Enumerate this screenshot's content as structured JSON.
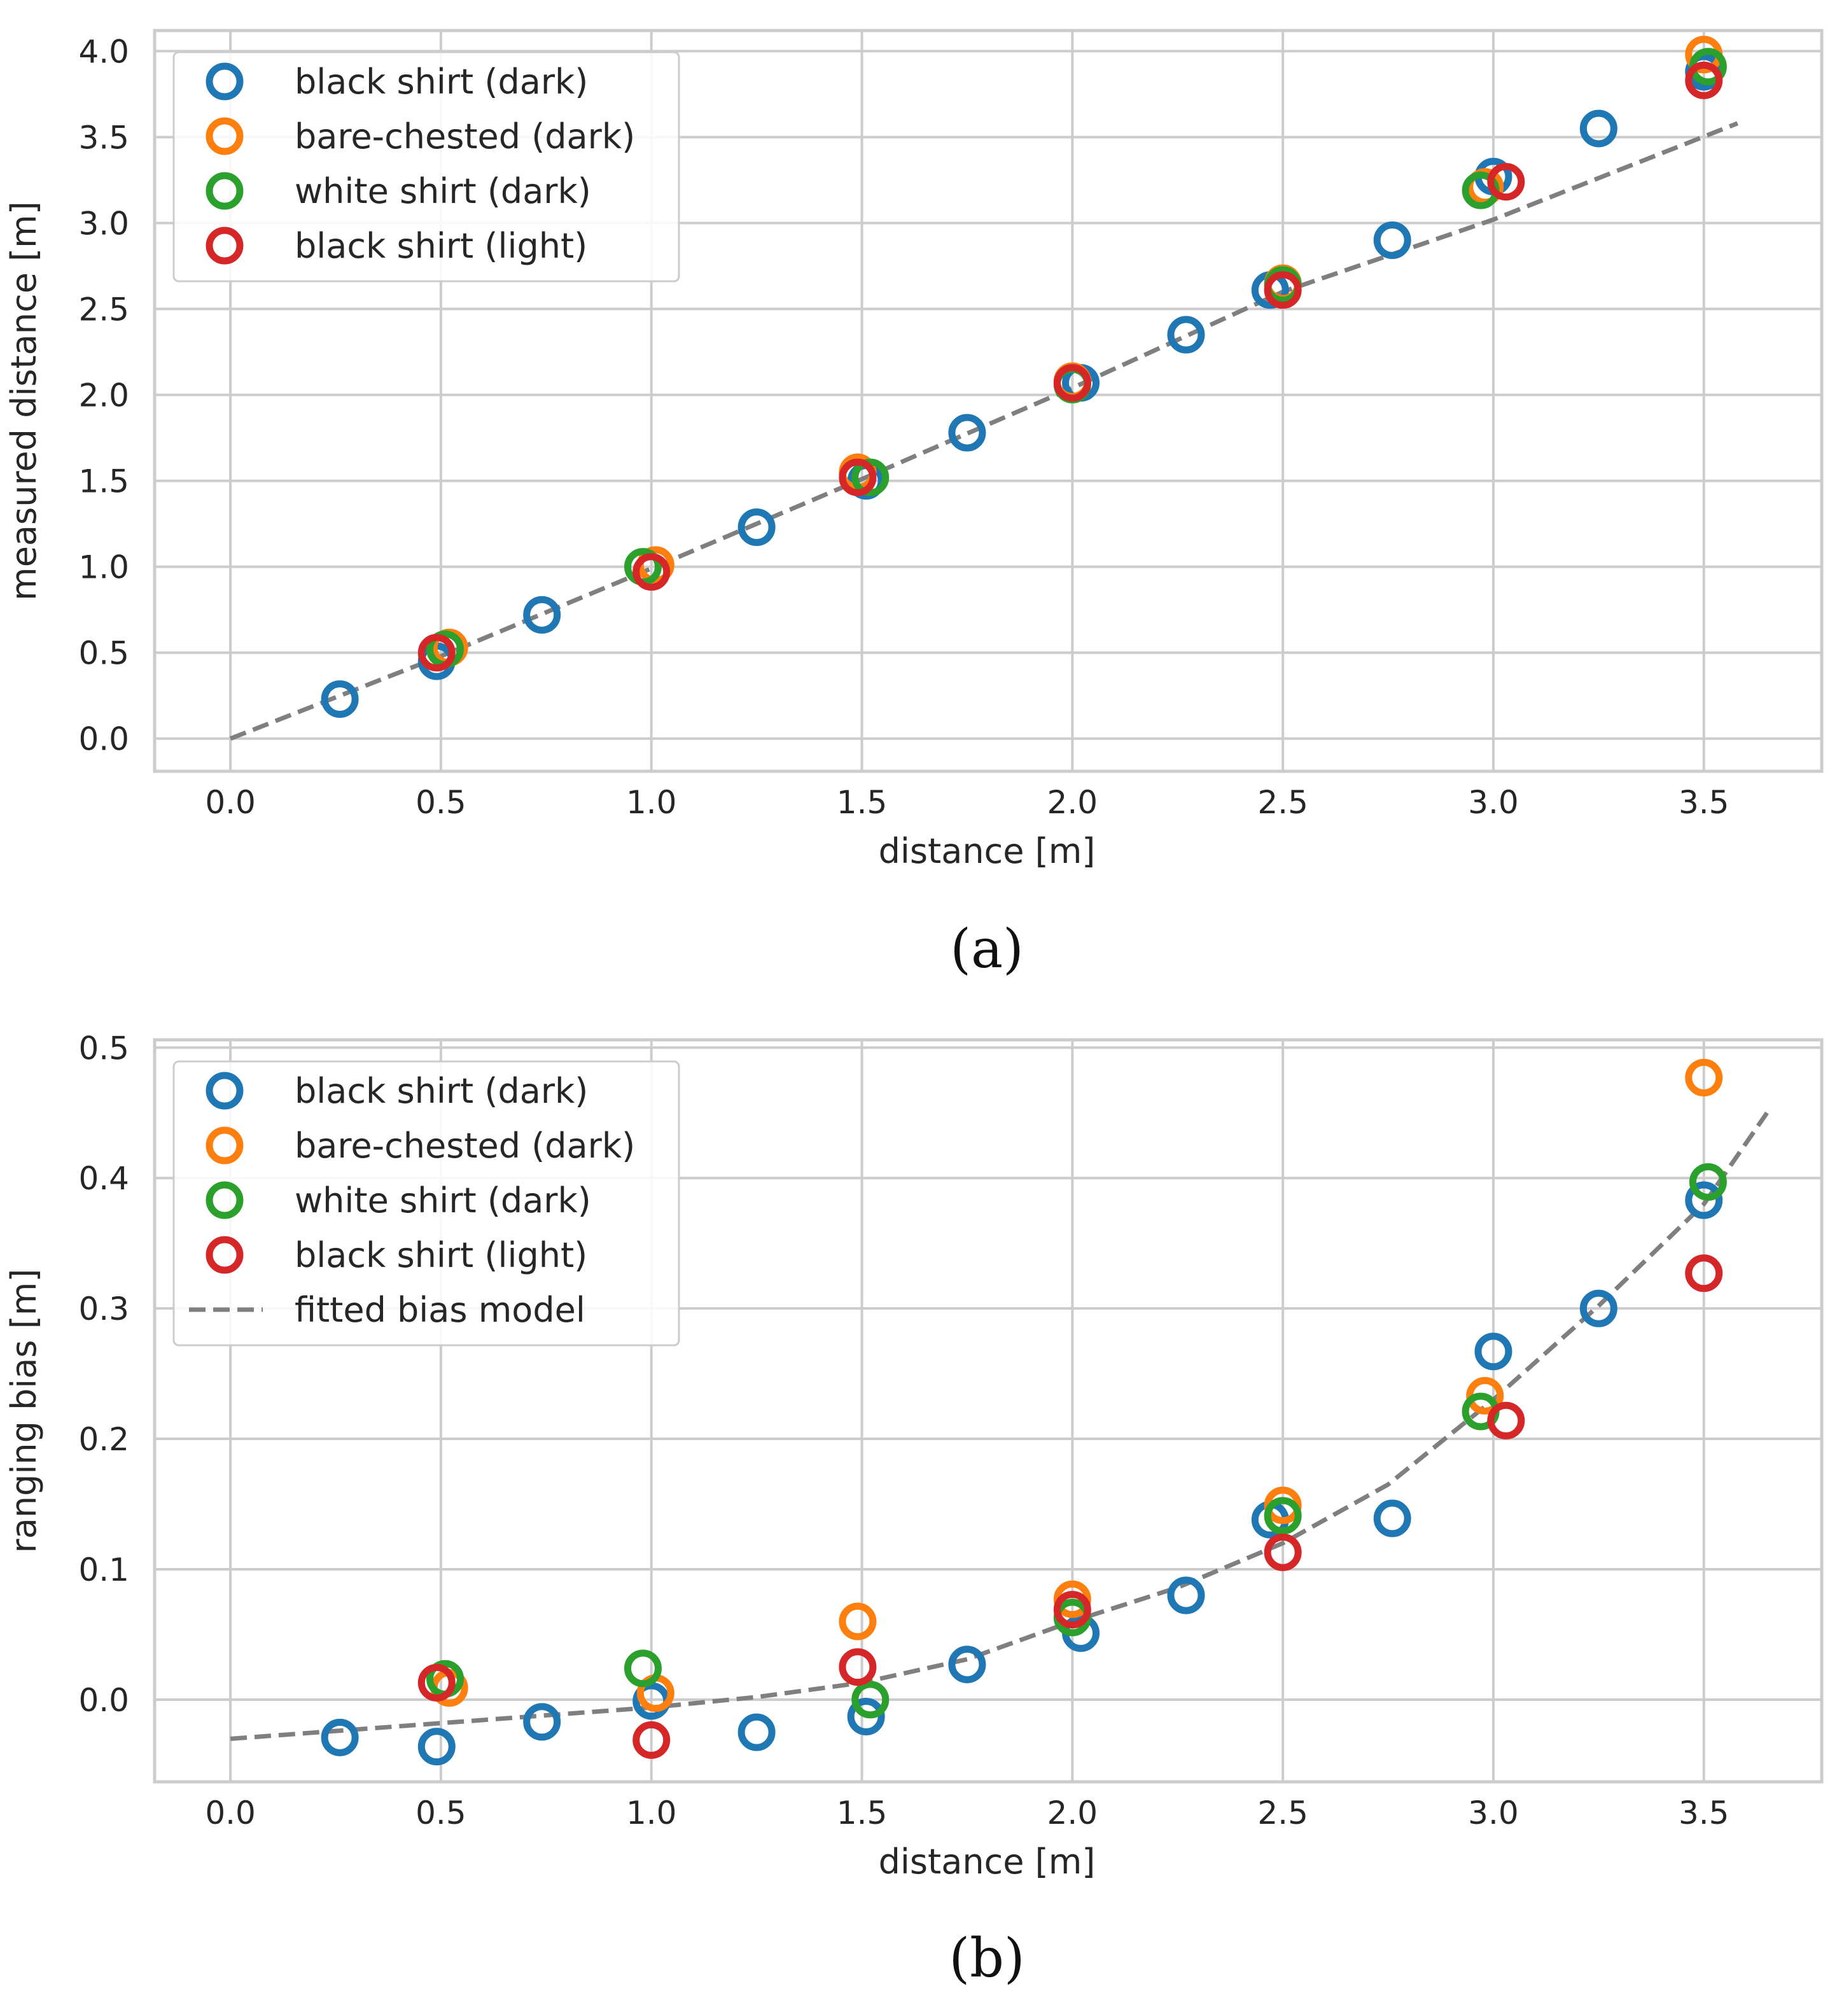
{
  "colors": {
    "black_shirt_dark": "#1f77b4",
    "bare_chested_dark": "#ff7f0e",
    "white_shirt_dark": "#2ca02c",
    "black_shirt_light": "#d62728",
    "fit": "#7f7f7f",
    "grid": "#cccccc"
  },
  "chart_data": [
    {
      "type": "scatter",
      "caption": "(a)",
      "xlabel": "distance [m]",
      "ylabel": "measured distance [m]",
      "xlim": [
        -0.18,
        3.78
      ],
      "ylim": [
        -0.19,
        4.12
      ],
      "xticks": [
        0.0,
        0.5,
        1.0,
        1.5,
        2.0,
        2.5,
        3.0,
        3.5
      ],
      "yticks": [
        0.0,
        0.5,
        1.0,
        1.5,
        2.0,
        2.5,
        3.0,
        3.5,
        4.0
      ],
      "xtick_labels": [
        "0.0",
        "0.5",
        "1.0",
        "1.5",
        "2.0",
        "2.5",
        "3.0",
        "3.5"
      ],
      "ytick_labels": [
        "0.0",
        "0.5",
        "1.0",
        "1.5",
        "2.0",
        "2.5",
        "3.0",
        "3.5",
        "4.0"
      ],
      "legend_position": "top-left",
      "series": [
        {
          "name": "black shirt (dark)",
          "color_key": "black_shirt_dark",
          "points": [
            [
              0.26,
              0.23
            ],
            [
              0.49,
              0.45
            ],
            [
              0.74,
              0.72
            ],
            [
              1.25,
              1.23
            ],
            [
              1.51,
              1.5
            ],
            [
              1.75,
              1.78
            ],
            [
              2.02,
              2.07
            ],
            [
              2.27,
              2.35
            ],
            [
              2.47,
              2.61
            ],
            [
              2.76,
              2.9
            ],
            [
              3.0,
              3.27
            ],
            [
              3.25,
              3.55
            ],
            [
              3.5,
              3.88
            ]
          ]
        },
        {
          "name": "bare-chested (dark)",
          "color_key": "bare_chested_dark",
          "points": [
            [
              0.52,
              0.53
            ],
            [
              1.01,
              1.01
            ],
            [
              1.49,
              1.55
            ],
            [
              2.0,
              2.08
            ],
            [
              2.5,
              2.65
            ],
            [
              2.98,
              3.21
            ],
            [
              3.5,
              3.98
            ]
          ]
        },
        {
          "name": "white shirt (dark)",
          "color_key": "white_shirt_dark",
          "points": [
            [
              0.51,
              0.52
            ],
            [
              0.98,
              1.0
            ],
            [
              1.52,
              1.52
            ],
            [
              2.0,
              2.06
            ],
            [
              2.5,
              2.64
            ],
            [
              2.97,
              3.19
            ],
            [
              3.51,
              3.91
            ]
          ]
        },
        {
          "name": "black shirt (light)",
          "color_key": "black_shirt_light",
          "points": [
            [
              0.49,
              0.5
            ],
            [
              1.0,
              0.97
            ],
            [
              1.49,
              1.52
            ],
            [
              2.0,
              2.07
            ],
            [
              2.5,
              2.61
            ],
            [
              3.03,
              3.24
            ],
            [
              3.5,
              3.83
            ]
          ]
        }
      ],
      "fit_line": {
        "name": "",
        "color_key": "fit",
        "points": [
          [
            0.0,
            0.0
          ],
          [
            0.5,
            0.48
          ],
          [
            1.0,
            0.99
          ],
          [
            1.5,
            1.51
          ],
          [
            2.0,
            2.04
          ],
          [
            2.5,
            2.6
          ],
          [
            3.0,
            3.02
          ],
          [
            3.58,
            3.58
          ]
        ]
      }
    },
    {
      "type": "scatter",
      "caption": "(b)",
      "xlabel": "distance [m]",
      "ylabel": "ranging bias [m]",
      "xlim": [
        -0.18,
        3.78
      ],
      "ylim": [
        -0.063,
        0.506
      ],
      "xticks": [
        0.0,
        0.5,
        1.0,
        1.5,
        2.0,
        2.5,
        3.0,
        3.5
      ],
      "yticks": [
        0.0,
        0.1,
        0.2,
        0.3,
        0.4,
        0.5
      ],
      "xtick_labels": [
        "0.0",
        "0.5",
        "1.0",
        "1.5",
        "2.0",
        "2.5",
        "3.0",
        "3.5"
      ],
      "ytick_labels": [
        "0.0",
        "0.1",
        "0.2",
        "0.3",
        "0.4",
        "0.5"
      ],
      "legend_position": "top-left",
      "series": [
        {
          "name": "black shirt (dark)",
          "color_key": "black_shirt_dark",
          "points": [
            [
              0.26,
              -0.029
            ],
            [
              0.49,
              -0.036
            ],
            [
              0.74,
              -0.017
            ],
            [
              1.0,
              -0.001
            ],
            [
              1.25,
              -0.025
            ],
            [
              1.51,
              -0.013
            ],
            [
              1.75,
              0.027
            ],
            [
              2.02,
              0.051
            ],
            [
              2.27,
              0.08
            ],
            [
              2.47,
              0.138
            ],
            [
              2.76,
              0.139
            ],
            [
              3.0,
              0.267
            ],
            [
              3.25,
              0.3
            ],
            [
              3.5,
              0.383
            ]
          ]
        },
        {
          "name": "bare-chested (dark)",
          "color_key": "bare_chested_dark",
          "points": [
            [
              0.52,
              0.009
            ],
            [
              1.01,
              0.005
            ],
            [
              1.49,
              0.06
            ],
            [
              2.0,
              0.077
            ],
            [
              2.5,
              0.149
            ],
            [
              2.98,
              0.233
            ],
            [
              3.5,
              0.477
            ]
          ]
        },
        {
          "name": "white shirt (dark)",
          "color_key": "white_shirt_dark",
          "points": [
            [
              0.51,
              0.016
            ],
            [
              0.98,
              0.024
            ],
            [
              1.52,
              0.0
            ],
            [
              2.0,
              0.063
            ],
            [
              2.5,
              0.141
            ],
            [
              2.97,
              0.221
            ],
            [
              3.51,
              0.397
            ]
          ]
        },
        {
          "name": "black shirt (light)",
          "color_key": "black_shirt_light",
          "points": [
            [
              0.49,
              0.013
            ],
            [
              1.0,
              -0.031
            ],
            [
              1.49,
              0.025
            ],
            [
              2.0,
              0.069
            ],
            [
              2.5,
              0.113
            ],
            [
              3.03,
              0.214
            ],
            [
              3.5,
              0.327
            ]
          ]
        }
      ],
      "fit_line": {
        "name": "fitted bias model",
        "color_key": "fit",
        "points": [
          [
            0.0,
            -0.03
          ],
          [
            0.5,
            -0.018
          ],
          [
            1.0,
            -0.006
          ],
          [
            1.25,
            0.002
          ],
          [
            1.5,
            0.013
          ],
          [
            1.75,
            0.031
          ],
          [
            2.0,
            0.06
          ],
          [
            2.25,
            0.086
          ],
          [
            2.5,
            0.12
          ],
          [
            2.75,
            0.165
          ],
          [
            3.0,
            0.23
          ],
          [
            3.25,
            0.302
          ],
          [
            3.5,
            0.38
          ],
          [
            3.65,
            0.45
          ]
        ]
      }
    }
  ]
}
